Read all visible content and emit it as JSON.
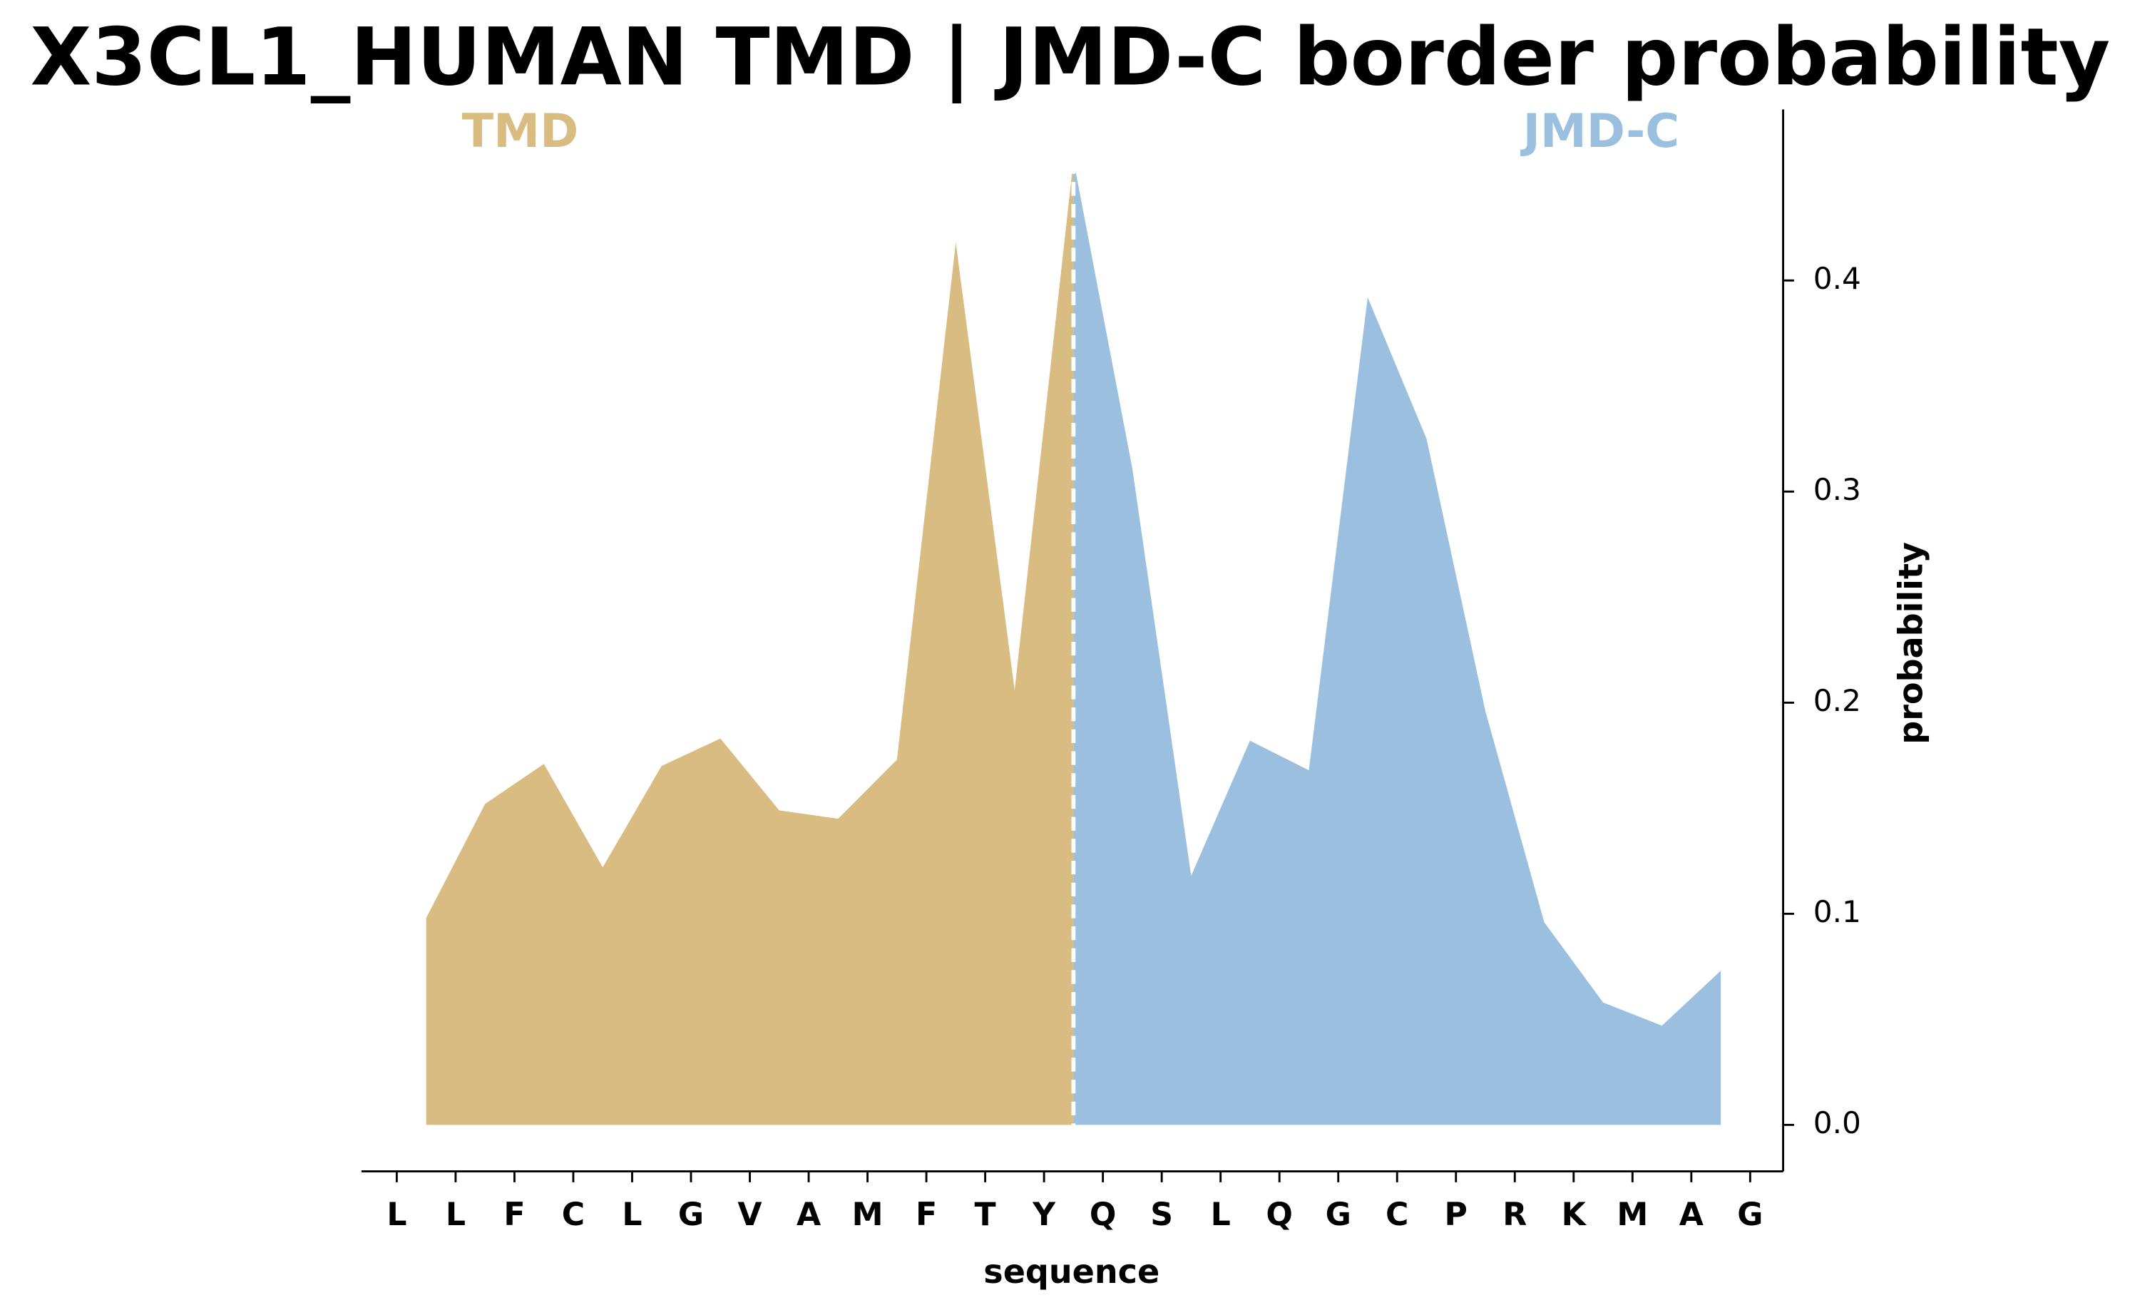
{
  "chart_data": {
    "type": "area",
    "title": "X3CL1_HUMAN TMD | JMD-C border probability",
    "xlabel": "sequence",
    "ylabel": "probability",
    "categories": [
      "L",
      "L",
      "F",
      "C",
      "L",
      "G",
      "V",
      "A",
      "M",
      "F",
      "T",
      "Y",
      "Q",
      "S",
      "L",
      "Q",
      "G",
      "C",
      "P",
      "R",
      "K",
      "M",
      "A",
      "G"
    ],
    "xlim": [
      -0.6,
      23.56
    ],
    "ylim": [
      -0.022,
      0.481
    ],
    "yticks": [
      {
        "value": 0,
        "label": "0.0"
      },
      0.1,
      0.2,
      0.3,
      0.4
    ],
    "vline_x": 11.5,
    "vline_style": "dashed",
    "series": [
      {
        "name": "TMD",
        "color": "#d9bc82",
        "x": [
          0.5,
          1.5,
          2.5,
          3.5,
          4.5,
          5.5,
          6.5,
          7.5,
          8.5,
          9.5,
          10.5,
          11.5
        ],
        "values": [
          0.098,
          0.152,
          0.171,
          0.122,
          0.17,
          0.183,
          0.149,
          0.145,
          0.173,
          0.418,
          0.206,
          0.457
        ]
      },
      {
        "name": "JMD-C",
        "color": "#9bc0df",
        "x": [
          11.5,
          12.5,
          13.5,
          14.5,
          15.5,
          16.5,
          17.5,
          18.5,
          19.5,
          20.5,
          21.5,
          22.5
        ],
        "values": [
          0.457,
          0.311,
          0.118,
          0.182,
          0.168,
          0.392,
          0.325,
          0.196,
          0.096,
          0.058,
          0.047,
          0.073
        ]
      }
    ]
  }
}
